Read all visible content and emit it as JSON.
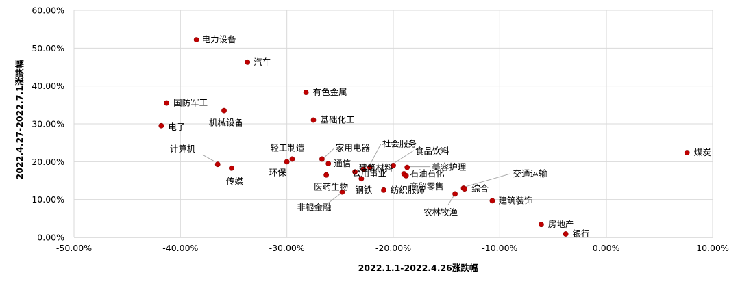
{
  "chart_data": {
    "type": "scatter",
    "xlabel": "2022.1.1-2022.4.26涨跌幅",
    "ylabel": "2022.4.27-2022.7.1涨跌幅",
    "xlim": [
      -0.5,
      0.1
    ],
    "ylim": [
      0,
      0.6
    ],
    "x_ticks": [
      "-50.00%",
      "-40.00%",
      "-30.00%",
      "-20.00%",
      "-10.00%",
      "0.00%",
      "10.00%"
    ],
    "y_ticks": [
      "0.00%",
      "10.00%",
      "20.00%",
      "30.00%",
      "40.00%",
      "50.00%",
      "60.00%"
    ],
    "grid": true,
    "legend": "none",
    "colors": {
      "point": "#c00000",
      "grid": "#d9d9d9",
      "zero_line": "#808080",
      "leader": "#a6a6a6"
    },
    "points": [
      {
        "name": "电力设备",
        "x": -0.385,
        "y": 0.522
      },
      {
        "name": "汽车",
        "x": -0.337,
        "y": 0.463
      },
      {
        "name": "国防军工",
        "x": -0.413,
        "y": 0.355
      },
      {
        "name": "机械设备",
        "x": -0.359,
        "y": 0.335
      },
      {
        "name": "电子",
        "x": -0.418,
        "y": 0.295
      },
      {
        "name": "有色金属",
        "x": -0.282,
        "y": 0.383
      },
      {
        "name": "基础化工",
        "x": -0.275,
        "y": 0.31
      },
      {
        "name": "计算机",
        "x": -0.365,
        "y": 0.193
      },
      {
        "name": "传媒",
        "x": -0.352,
        "y": 0.183
      },
      {
        "name": "轻工制造",
        "x": -0.295,
        "y": 0.207
      },
      {
        "name": "环保",
        "x": -0.3,
        "y": 0.2
      },
      {
        "name": "家用电器",
        "x": -0.267,
        "y": 0.207
      },
      {
        "name": "通信",
        "x": -0.261,
        "y": 0.195
      },
      {
        "name": "医药生物",
        "x": -0.263,
        "y": 0.165
      },
      {
        "name": "社会服务",
        "x": -0.222,
        "y": 0.185
      },
      {
        "name": "建筑材料",
        "x": -0.228,
        "y": 0.18
      },
      {
        "name": "公用事业",
        "x": -0.236,
        "y": 0.173
      },
      {
        "name": "钢铁",
        "x": -0.23,
        "y": 0.155
      },
      {
        "name": "非银金融",
        "x": -0.248,
        "y": 0.12
      },
      {
        "name": "纺织服饰",
        "x": -0.209,
        "y": 0.125
      },
      {
        "name": "食品饮料",
        "x": -0.2,
        "y": 0.19
      },
      {
        "name": "美容护理",
        "x": -0.187,
        "y": 0.185
      },
      {
        "name": "石油石化",
        "x": -0.19,
        "y": 0.168
      },
      {
        "name": "商贸零售",
        "x": -0.188,
        "y": 0.163
      },
      {
        "name": "交通运输",
        "x": -0.134,
        "y": 0.13
      },
      {
        "name": "综合",
        "x": -0.133,
        "y": 0.128
      },
      {
        "name": "农林牧渔",
        "x": -0.142,
        "y": 0.115
      },
      {
        "name": "建筑装饰",
        "x": -0.107,
        "y": 0.097
      },
      {
        "name": "房地产",
        "x": -0.061,
        "y": 0.034
      },
      {
        "name": "银行",
        "x": -0.038,
        "y": 0.009
      },
      {
        "name": "煤炭",
        "x": 0.076,
        "y": 0.224
      }
    ]
  }
}
